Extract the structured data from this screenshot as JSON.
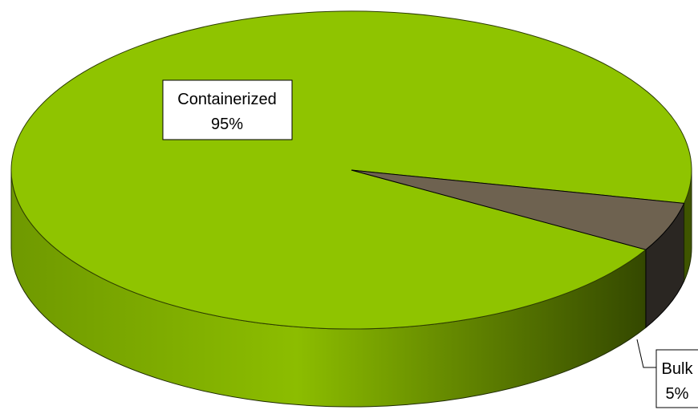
{
  "chart_data": {
    "type": "pie",
    "style": "3d",
    "title": "",
    "slices": [
      {
        "label": "Containerized",
        "percent_label": "95%",
        "value": 95,
        "color": "#8fc400"
      },
      {
        "label": "Bulk",
        "percent_label": "5%",
        "value": 5,
        "color": "#6e6250"
      }
    ],
    "legend": "none"
  }
}
